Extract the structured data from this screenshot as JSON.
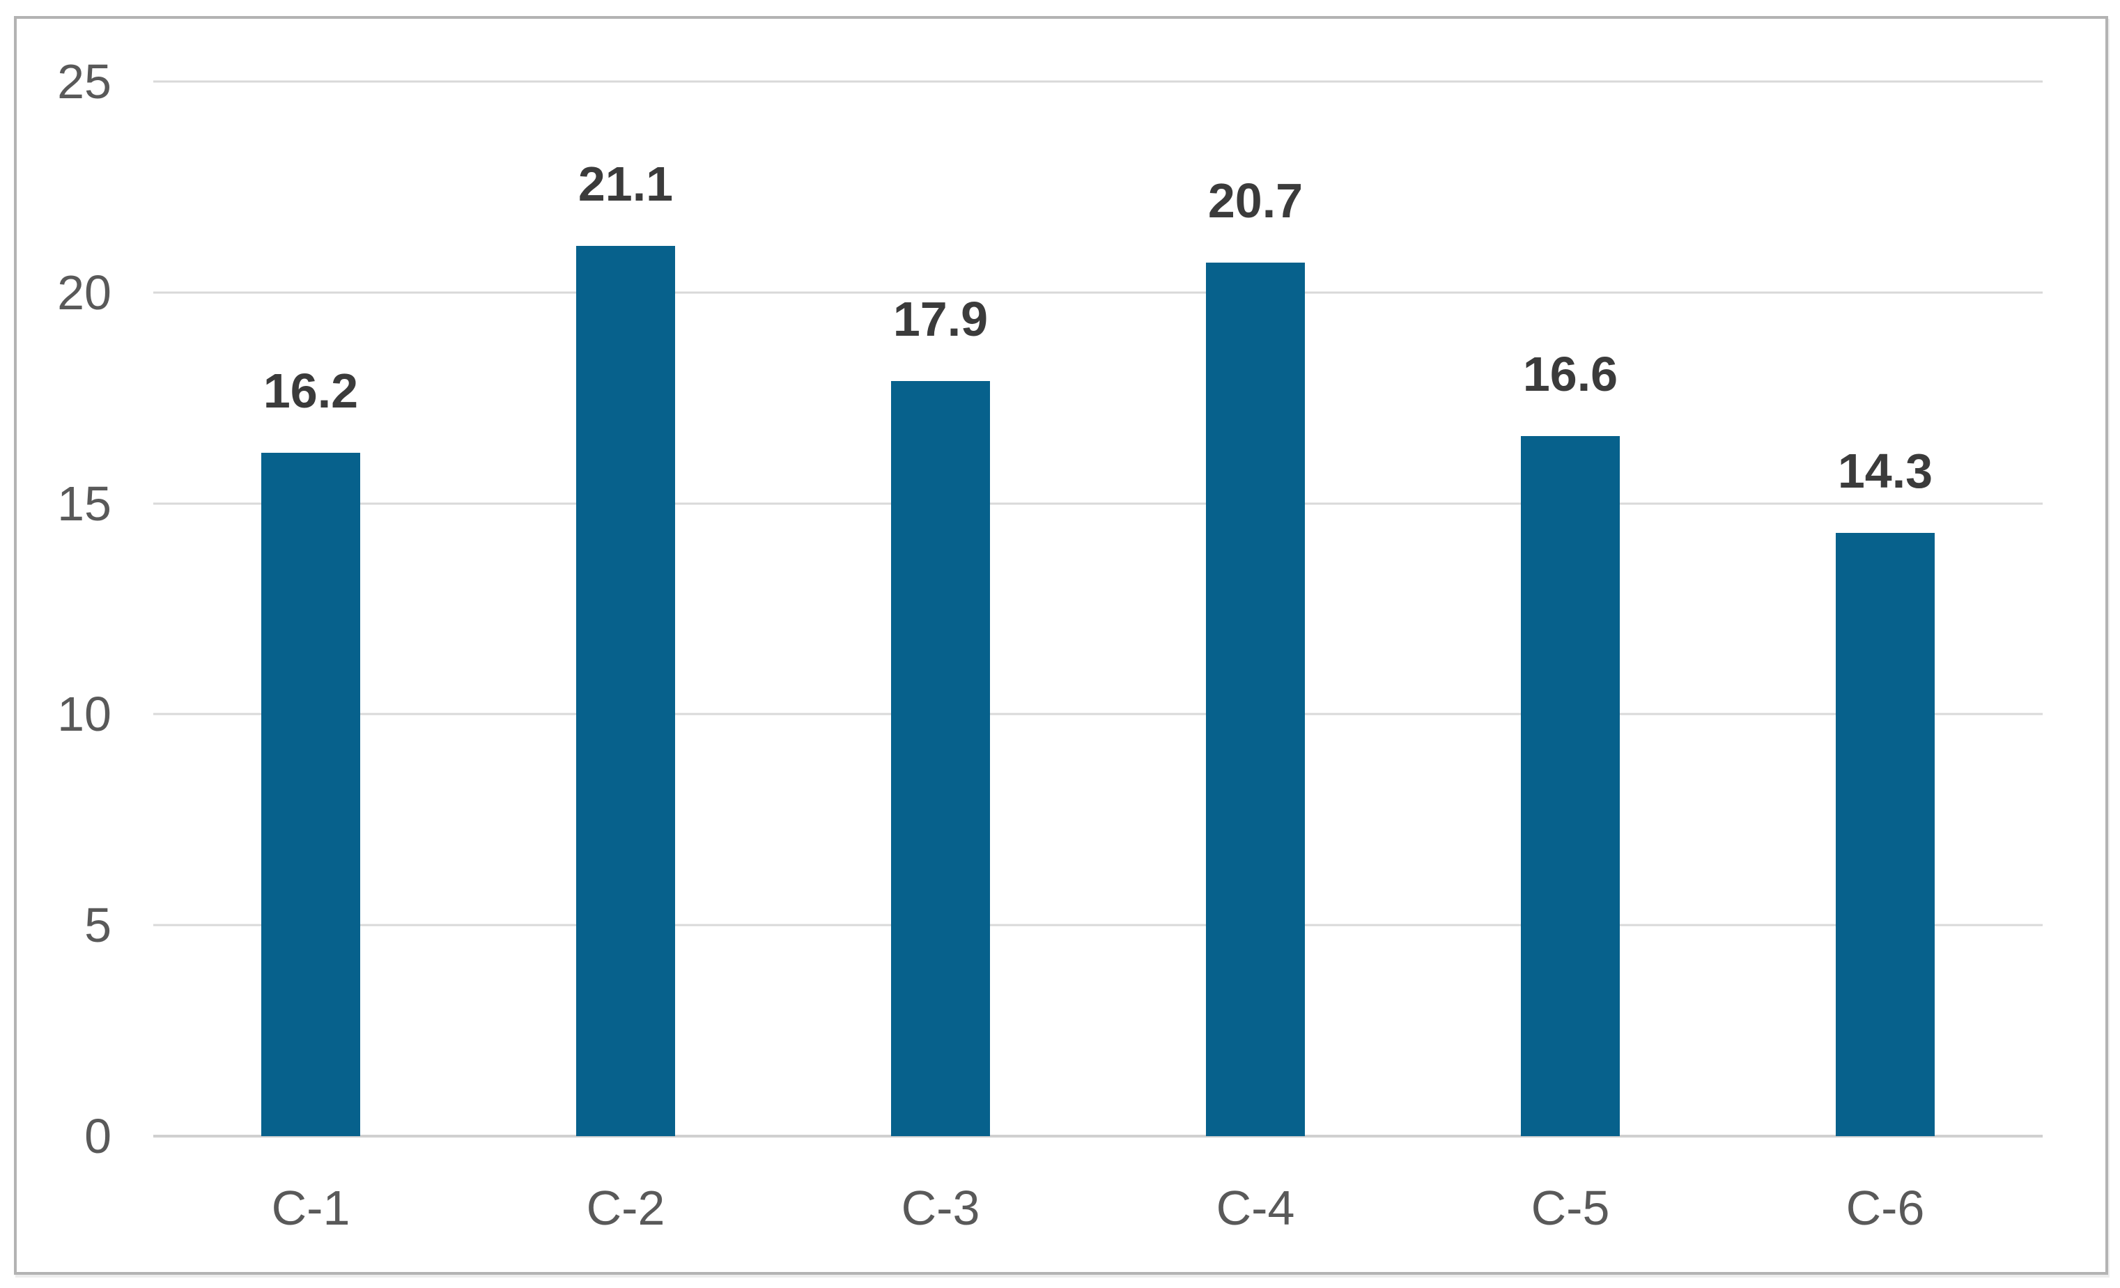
{
  "chart_data": {
    "type": "bar",
    "title": "",
    "xlabel": "",
    "ylabel": "",
    "categories": [
      "C-1",
      "C-2",
      "C-3",
      "C-4",
      "C-5",
      "C-6"
    ],
    "values": [
      16.2,
      21.1,
      17.9,
      20.7,
      16.6,
      14.3
    ],
    "data_labels": [
      "16.2",
      "21.1",
      "17.9",
      "20.7",
      "16.6",
      "14.3"
    ],
    "ylim": [
      0,
      25
    ],
    "yticks": [
      0,
      5,
      10,
      15,
      20,
      25
    ],
    "ytick_labels": [
      "0",
      "5",
      "10",
      "15",
      "20",
      "25"
    ],
    "grid": "horizontal",
    "legend": "none",
    "colors": {
      "bar": "#07618c",
      "gridline": "#d9d9d9",
      "baseline": "#d0d0d0",
      "tick_label": "#595959",
      "data_label": "#3b3b3b",
      "frame_border": "#b3b3b3",
      "background": "#ffffff"
    }
  }
}
